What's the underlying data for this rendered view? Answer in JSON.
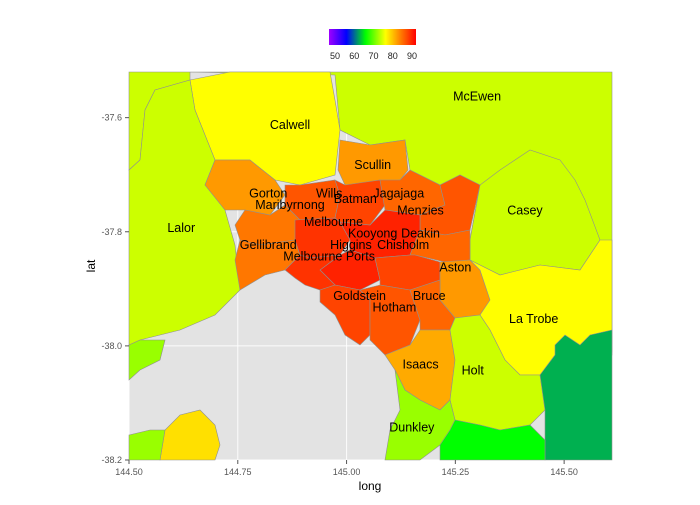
{
  "chart_data": {
    "type": "choropleth",
    "xlabel": "long",
    "ylabel": "lat",
    "xlim": [
      144.5,
      145.61
    ],
    "ylim": [
      -38.2,
      -37.52
    ],
    "x_ticks": [
      "144.50",
      "144.75",
      "145.00",
      "145.25",
      "145.50"
    ],
    "y_ticks": [
      "-37.6",
      "-37.8",
      "-38.0",
      "-38.2"
    ],
    "legend": {
      "position": "top",
      "ticks": [
        "50",
        "60",
        "70",
        "80",
        "90"
      ],
      "gradient": [
        "#a000ff",
        "#0000ff",
        "#00ff00",
        "#ffff00",
        "#ff8000",
        "#ff0000"
      ]
    },
    "background_color": "#e3e3e3",
    "regions": [
      {
        "name": "McEwen",
        "label_long": 145.3,
        "label_lat": -37.57,
        "color": "#ccff00"
      },
      {
        "name": "Calwell",
        "label_long": 144.87,
        "label_lat": -37.62,
        "color": "#ffff00"
      },
      {
        "name": "Scullin",
        "label_long": 145.06,
        "label_lat": -37.69,
        "color": "#ff9900"
      },
      {
        "name": "Gorton",
        "label_long": 144.82,
        "label_lat": -37.74,
        "color": "#ff9900"
      },
      {
        "name": "Wills",
        "label_long": 144.96,
        "label_lat": -37.74,
        "color": "#ff5500"
      },
      {
        "name": "Batman",
        "label_long": 145.02,
        "label_lat": -37.75,
        "color": "#ff4400"
      },
      {
        "name": "Jagajaga",
        "label_long": 145.12,
        "label_lat": -37.74,
        "color": "#ff6600"
      },
      {
        "name": "Maribyrnong",
        "label_long": 144.87,
        "label_lat": -37.76,
        "color": "#ff7700"
      },
      {
        "name": "Menzies",
        "label_long": 145.17,
        "label_lat": -37.77,
        "color": "#ff5500"
      },
      {
        "name": "Casey",
        "label_long": 145.41,
        "label_lat": -37.77,
        "color": "#ccff00"
      },
      {
        "name": "Melbourne",
        "label_long": 144.97,
        "label_lat": -37.79,
        "color": "#ff3300"
      },
      {
        "name": "Lalor",
        "label_long": 144.62,
        "label_lat": -37.8,
        "color": "#ccff00"
      },
      {
        "name": "Kooyong",
        "label_long": 145.06,
        "label_lat": -37.81,
        "color": "#ff2200"
      },
      {
        "name": "Deakin",
        "label_long": 145.17,
        "label_lat": -37.81,
        "color": "#ff6600"
      },
      {
        "name": "Gellibrand",
        "label_long": 144.82,
        "label_lat": -37.83,
        "color": "#ff7700"
      },
      {
        "name": "Higgins",
        "label_long": 145.01,
        "label_lat": -37.83,
        "color": "#ff2200"
      },
      {
        "name": "Chisholm",
        "label_long": 145.13,
        "label_lat": -37.83,
        "color": "#ff4400"
      },
      {
        "name": "Melbourne Ports",
        "label_long": 144.96,
        "label_lat": -37.85,
        "color": "#ff3300"
      },
      {
        "name": "Aston",
        "label_long": 145.25,
        "label_lat": -37.87,
        "color": "#ff9900"
      },
      {
        "name": "Goldstein",
        "label_long": 145.03,
        "label_lat": -37.92,
        "color": "#ff4400"
      },
      {
        "name": "Bruce",
        "label_long": 145.19,
        "label_lat": -37.92,
        "color": "#ff6600"
      },
      {
        "name": "Hotham",
        "label_long": 145.11,
        "label_lat": -37.94,
        "color": "#ff5500"
      },
      {
        "name": "La Trobe",
        "label_long": 145.43,
        "label_lat": -37.96,
        "color": "#ffff00"
      },
      {
        "name": "Isaacs",
        "label_long": 145.17,
        "label_lat": -38.04,
        "color": "#ffaa00"
      },
      {
        "name": "Holt",
        "label_long": 145.29,
        "label_lat": -38.05,
        "color": "#ccff00"
      },
      {
        "name": "Dunkley",
        "label_long": 145.15,
        "label_lat": -38.15,
        "color": "#99ff00"
      }
    ]
  }
}
